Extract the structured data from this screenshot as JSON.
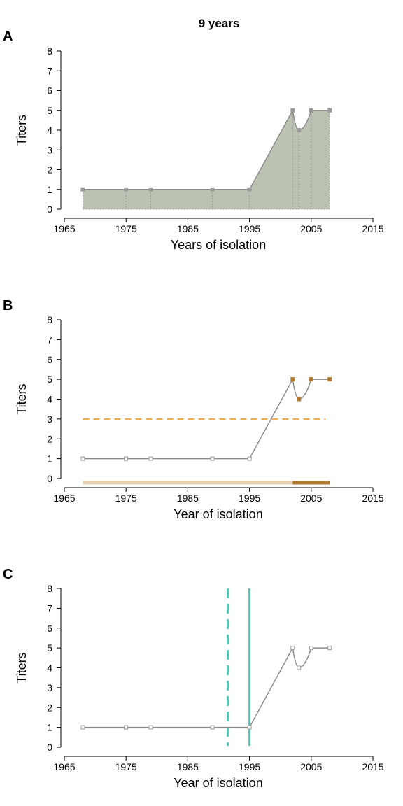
{
  "title": "9 years",
  "colors": {
    "line": "#8c8c8c",
    "marker": "#9a9a9a",
    "fill": "#bcc2b2",
    "high_marker": "#b07b2e",
    "threshold": "#e8a848",
    "low_bar": "#e4cfb0",
    "high_bar": "#b07b2e",
    "vline": "#4fc8b6"
  },
  "chart_data": [
    {
      "panel": "A",
      "type": "area",
      "xlabel": "Years of isolation",
      "ylabel": "Titers",
      "xlim": [
        1965,
        2015
      ],
      "ylim": [
        0,
        8
      ],
      "xticks": [
        1965,
        1975,
        1985,
        1995,
        2005,
        2015
      ],
      "yticks": [
        0,
        1,
        2,
        3,
        4,
        5,
        6,
        7,
        8
      ],
      "x": [
        1968,
        1975,
        1979,
        1989,
        1995,
        2002,
        2003,
        2005,
        2008
      ],
      "y": [
        1,
        1,
        1,
        1,
        1,
        5,
        4,
        5,
        5
      ]
    },
    {
      "panel": "B",
      "type": "line",
      "xlabel": "Year of isolation",
      "ylabel": "Titers",
      "xlim": [
        1965,
        2015
      ],
      "ylim": [
        0,
        8
      ],
      "xticks": [
        1965,
        1975,
        1985,
        1995,
        2005,
        2015
      ],
      "yticks": [
        0,
        1,
        2,
        3,
        4,
        5,
        6,
        7,
        8
      ],
      "x": [
        1968,
        1975,
        1979,
        1989,
        1995,
        2002,
        2003,
        2005,
        2008
      ],
      "y": [
        1,
        1,
        1,
        1,
        1,
        5,
        4,
        5,
        5
      ],
      "threshold": 3,
      "low_period": [
        1968,
        2002
      ],
      "high_period": [
        2002,
        2008
      ]
    },
    {
      "panel": "C",
      "type": "line",
      "xlabel": "Year of isolation",
      "ylabel": "Titers",
      "xlim": [
        1965,
        2015
      ],
      "ylim": [
        0,
        8
      ],
      "xticks": [
        1965,
        1975,
        1985,
        1995,
        2005,
        2015
      ],
      "yticks": [
        0,
        1,
        2,
        3,
        4,
        5,
        6,
        7,
        8
      ],
      "x": [
        1968,
        1975,
        1979,
        1989,
        1995,
        2002,
        2003,
        2005,
        2008
      ],
      "y": [
        1,
        1,
        1,
        1,
        1,
        5,
        4,
        5,
        5
      ],
      "dashed_vline": 1991.5,
      "solid_vline": 1995
    }
  ]
}
